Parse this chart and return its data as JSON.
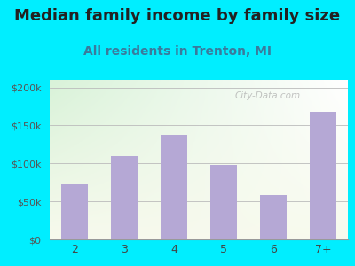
{
  "title": "Median family income by family size",
  "subtitle": "All residents in Trenton, MI",
  "categories": [
    "2",
    "3",
    "4",
    "5",
    "6",
    "7+"
  ],
  "values": [
    72000,
    110000,
    138000,
    98000,
    58000,
    168000
  ],
  "bar_color": "#b5a8d5",
  "title_fontsize": 13,
  "subtitle_fontsize": 10,
  "background_outer": "#00eeff",
  "yticks": [
    0,
    50000,
    100000,
    150000,
    200000
  ],
  "ytick_labels": [
    "$0",
    "$50k",
    "$100k",
    "$150k",
    "$200k"
  ],
  "ylim": [
    0,
    210000
  ],
  "watermark": "City-Data.com"
}
